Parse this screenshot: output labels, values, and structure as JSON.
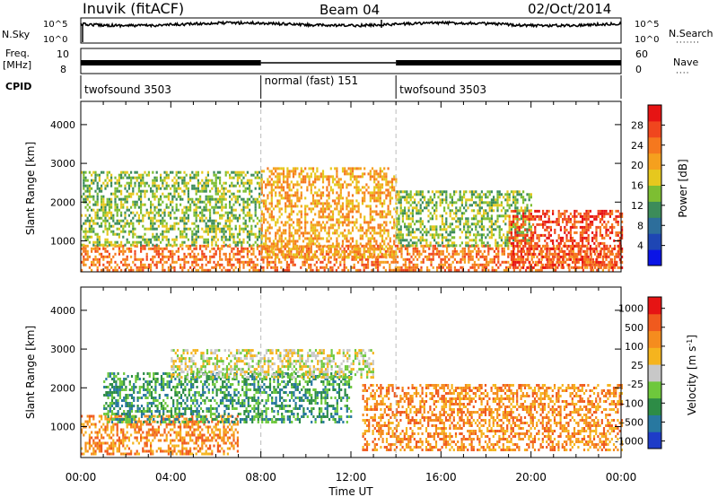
{
  "header": {
    "station": "Inuvik (fitACF)",
    "beam": "Beam 04",
    "date": "02/Oct/2014"
  },
  "strip_labels": {
    "nsky": "N.Sky",
    "nsearch": "N.Search",
    "freq": "Freq.",
    "mhz": "[MHz]",
    "nave": "Nave",
    "cpid": "CPID",
    "nsky_ticks": [
      "10^5",
      "10^0"
    ],
    "freq_ticks": [
      "10",
      "8"
    ],
    "nave_ticks": [
      "60",
      "0"
    ]
  },
  "cpid_segments": [
    {
      "label": "twofsound 3503",
      "start_hour": 0,
      "end_hour": 8
    },
    {
      "label": "normal (fast) 151",
      "start_hour": 8,
      "end_hour": 14
    },
    {
      "label": "twofsound 3503",
      "start_hour": 14,
      "end_hour": 24
    }
  ],
  "time_axis": {
    "label": "Time UT",
    "ticks": [
      "00:00",
      "04:00",
      "08:00",
      "12:00",
      "16:00",
      "20:00",
      "00:00"
    ]
  },
  "chart_data": [
    {
      "type": "heatmap",
      "title": "",
      "xlabel": "Time UT",
      "ylabel": "Slant Range [km]",
      "xlim_hours": [
        0,
        24
      ],
      "ylim": [
        200,
        4600
      ],
      "yticks": [
        1000,
        2000,
        3000,
        4000
      ],
      "colorbar": {
        "label": "Power [dB]",
        "ticks": [
          "4",
          "8",
          "12",
          "16",
          "20",
          "24",
          "28"
        ],
        "colors": [
          "#0a14e6",
          "#1e46b4",
          "#2d6e9b",
          "#3c8c5a",
          "#7dbe32",
          "#e6c81e",
          "#f5a01e",
          "#f5781e",
          "#f0461e",
          "#e61414"
        ]
      },
      "scatter_regions": [
        {
          "t_start": 0.0,
          "t_end": 24.0,
          "r_low": 250,
          "r_high": 900,
          "level": 7
        },
        {
          "t_start": 0.0,
          "t_end": 8.0,
          "r_low": 900,
          "r_high": 2800,
          "level": 4
        },
        {
          "t_start": 8.0,
          "t_end": 14.0,
          "r_low": 600,
          "r_high": 2900,
          "level": 6
        },
        {
          "t_start": 14.0,
          "t_end": 20.0,
          "r_low": 900,
          "r_high": 2300,
          "level": 4
        },
        {
          "t_start": 19.0,
          "t_end": 24.0,
          "r_low": 300,
          "r_high": 1800,
          "level": 8
        }
      ]
    },
    {
      "type": "heatmap",
      "title": "",
      "xlabel": "Time UT",
      "ylabel": "Slant Range [km]",
      "xlim_hours": [
        0,
        24
      ],
      "ylim": [
        200,
        4600
      ],
      "yticks": [
        1000,
        2000,
        3000,
        4000
      ],
      "colorbar": {
        "label": "Velocity [m s",
        "label_sup": "-1",
        "label_end": "]",
        "ticks": [
          "1000",
          "500",
          "100",
          "25",
          "-25",
          "-100",
          "-500",
          "-1000"
        ],
        "colors": [
          "#1e3cc8",
          "#2878a0",
          "#2d8c46",
          "#6ec83c",
          "#c8c8c8",
          "#f5b41e",
          "#f58c1e",
          "#f05a1e",
          "#e61414"
        ]
      },
      "scatter_regions": [
        {
          "t_start": 0.0,
          "t_end": 7.0,
          "r_low": 300,
          "r_high": 1300,
          "level": 6
        },
        {
          "t_start": 1.0,
          "t_end": 12.0,
          "r_low": 1100,
          "r_high": 2400,
          "level": 2
        },
        {
          "t_start": 4.0,
          "t_end": 13.0,
          "r_low": 2300,
          "r_high": 3000,
          "level": 4
        },
        {
          "t_start": 12.5,
          "t_end": 24.0,
          "r_low": 400,
          "r_high": 2100,
          "level": 6
        }
      ]
    }
  ]
}
